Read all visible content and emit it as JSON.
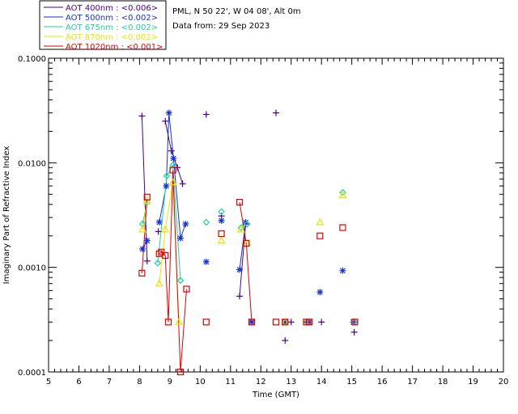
{
  "colors": {
    "aot_400": "#4b0082",
    "aot_500": "#1432d2",
    "aot_675": "#20d0a0",
    "aot_870": "#e6e600",
    "aot_1020": "#e00000"
  },
  "chart_data": {
    "type": "scatter",
    "xlabel": "Time (GMT)",
    "ylabel": "Imaginary Part of Refractive Index",
    "xlim": [
      5,
      20
    ],
    "ylim": [
      0.0001,
      0.1
    ],
    "yscale": "log",
    "xticks": [
      "5",
      "6",
      "7",
      "8",
      "9",
      "10",
      "11",
      "12",
      "13",
      "14",
      "15",
      "16",
      "17",
      "18",
      "19",
      "20"
    ],
    "yticks": [
      {
        "value": 0.1,
        "label": "0.1000"
      },
      {
        "value": 0.01,
        "label": "0.0100"
      },
      {
        "value": 0.001,
        "label": "0.0010"
      },
      {
        "value": 0.0001,
        "label": "0.0001"
      }
    ],
    "info_lines": [
      "PML, N 50 22', W 04 08', Alt 0m",
      "Data from: 29 Sep 2023"
    ],
    "legend_placement": "top-left, outside plot",
    "series": [
      {
        "name": "AOT  400nm : <0.006>",
        "color_key": "aot_400",
        "marker": "plus",
        "points": [
          [
            8.08,
            0.028
          ],
          [
            8.25,
            0.00115
          ],
          [
            8.62,
            0.0022
          ],
          [
            8.85,
            0.025
          ],
          [
            9.05,
            0.013
          ],
          [
            9.25,
            0.009
          ],
          [
            9.42,
            0.0063
          ],
          [
            10.2,
            0.029
          ],
          [
            10.7,
            0.0031
          ],
          [
            11.3,
            0.00053
          ],
          [
            11.5,
            0.0026
          ],
          [
            11.7,
            0.0003
          ],
          [
            12.5,
            0.03
          ],
          [
            12.8,
            0.0002
          ],
          [
            13.0,
            0.0003
          ],
          [
            13.5,
            0.0003
          ],
          [
            14.0,
            0.0003
          ],
          [
            15.08,
            0.00024
          ]
        ],
        "lines": [
          [
            [
              8.08,
              0.028
            ],
            [
              8.25,
              0.00115
            ]
          ],
          [
            [
              8.85,
              0.025
            ],
            [
              9.05,
              0.013
            ],
            [
              9.25,
              0.009
            ],
            [
              9.42,
              0.0063
            ]
          ],
          [
            [
              11.3,
              0.00053
            ],
            [
              11.5,
              0.0026
            ]
          ]
        ]
      },
      {
        "name": "AOT  500nm : <0.002>",
        "color_key": "aot_500",
        "marker": "star",
        "points": [
          [
            8.1,
            0.0015
          ],
          [
            8.25,
            0.0018
          ],
          [
            8.65,
            0.0027
          ],
          [
            8.88,
            0.006
          ],
          [
            8.97,
            0.03
          ],
          [
            9.12,
            0.011
          ],
          [
            9.35,
            0.0019
          ],
          [
            9.52,
            0.0026
          ],
          [
            10.2,
            0.00113
          ],
          [
            10.7,
            0.0028
          ],
          [
            11.3,
            0.00095
          ],
          [
            11.5,
            0.0027
          ],
          [
            11.7,
            0.0003
          ],
          [
            12.8,
            0.0003
          ],
          [
            13.6,
            0.0003
          ],
          [
            13.95,
            0.00058
          ],
          [
            14.7,
            0.00093
          ],
          [
            15.05,
            0.0003
          ]
        ],
        "lines": [
          [
            [
              8.1,
              0.0015
            ],
            [
              8.25,
              0.0018
            ]
          ],
          [
            [
              8.65,
              0.0027
            ],
            [
              8.88,
              0.006
            ],
            [
              8.97,
              0.03
            ],
            [
              9.12,
              0.011
            ],
            [
              9.35,
              0.0019
            ],
            [
              9.52,
              0.0026
            ]
          ],
          [
            [
              11.3,
              0.00095
            ],
            [
              11.5,
              0.0027
            ]
          ]
        ]
      },
      {
        "name": "AOT  675nm : <0.002>",
        "color_key": "aot_675",
        "marker": "diamond",
        "points": [
          [
            8.1,
            0.0026
          ],
          [
            8.25,
            0.0042
          ],
          [
            8.6,
            0.0011
          ],
          [
            8.9,
            0.0075
          ],
          [
            9.1,
            0.0095
          ],
          [
            9.35,
            0.00075
          ],
          [
            10.2,
            0.0027
          ],
          [
            10.7,
            0.0034
          ],
          [
            11.35,
            0.0024
          ],
          [
            11.55,
            0.0026
          ],
          [
            12.8,
            0.0003
          ],
          [
            13.5,
            0.0003
          ],
          [
            14.7,
            0.0052
          ],
          [
            15.1,
            0.0003
          ]
        ],
        "lines": [
          [
            [
              8.1,
              0.0026
            ],
            [
              8.25,
              0.0042
            ]
          ],
          [
            [
              8.6,
              0.0011
            ],
            [
              8.9,
              0.0075
            ],
            [
              9.1,
              0.0095
            ],
            [
              9.35,
              0.00075
            ]
          ]
        ]
      },
      {
        "name": "AOT  870nm : <0.002>",
        "color_key": "aot_870",
        "marker": "triangle",
        "points": [
          [
            8.1,
            0.0023
          ],
          [
            8.25,
            0.0043
          ],
          [
            8.65,
            0.0007
          ],
          [
            8.85,
            0.0023
          ],
          [
            9.1,
            0.0065
          ],
          [
            9.3,
            0.0003
          ],
          [
            10.7,
            0.0018
          ],
          [
            11.35,
            0.0023
          ],
          [
            11.55,
            0.0017
          ],
          [
            12.8,
            0.0003
          ],
          [
            13.95,
            0.0027
          ],
          [
            14.7,
            0.0049
          ]
        ],
        "lines": [
          [
            [
              8.1,
              0.0023
            ],
            [
              8.25,
              0.0043
            ]
          ],
          [
            [
              8.65,
              0.0007
            ],
            [
              8.85,
              0.0023
            ],
            [
              9.1,
              0.0065
            ],
            [
              9.3,
              0.0003
            ]
          ]
        ]
      },
      {
        "name": "AOT 1020nm : <0.001>",
        "color_key": "aot_1020",
        "marker": "square",
        "points": [
          [
            8.08,
            0.00088
          ],
          [
            8.25,
            0.0047
          ],
          [
            8.65,
            0.00135
          ],
          [
            8.72,
            0.0014
          ],
          [
            8.85,
            0.0013
          ],
          [
            8.95,
            0.0003
          ],
          [
            9.1,
            0.0085
          ],
          [
            9.35,
            0.0001
          ],
          [
            9.55,
            0.00062
          ],
          [
            10.2,
            0.0003
          ],
          [
            10.7,
            0.0021
          ],
          [
            11.3,
            0.0042
          ],
          [
            11.52,
            0.0017
          ],
          [
            11.7,
            0.0003
          ],
          [
            12.5,
            0.0003
          ],
          [
            12.8,
            0.0003
          ],
          [
            13.5,
            0.0003
          ],
          [
            13.6,
            0.0003
          ],
          [
            13.95,
            0.002
          ],
          [
            14.7,
            0.0024
          ],
          [
            15.1,
            0.0003
          ]
        ],
        "lines": [
          [
            [
              8.08,
              0.00088
            ],
            [
              8.25,
              0.0047
            ]
          ],
          [
            [
              8.65,
              0.00135
            ],
            [
              8.72,
              0.0014
            ],
            [
              8.85,
              0.0013
            ],
            [
              8.95,
              0.0003
            ],
            [
              9.1,
              0.0085
            ],
            [
              9.35,
              0.0001
            ],
            [
              9.55,
              0.00062
            ]
          ],
          [
            [
              11.3,
              0.0042
            ],
            [
              11.52,
              0.0017
            ],
            [
              11.7,
              0.0003
            ]
          ]
        ]
      }
    ]
  }
}
